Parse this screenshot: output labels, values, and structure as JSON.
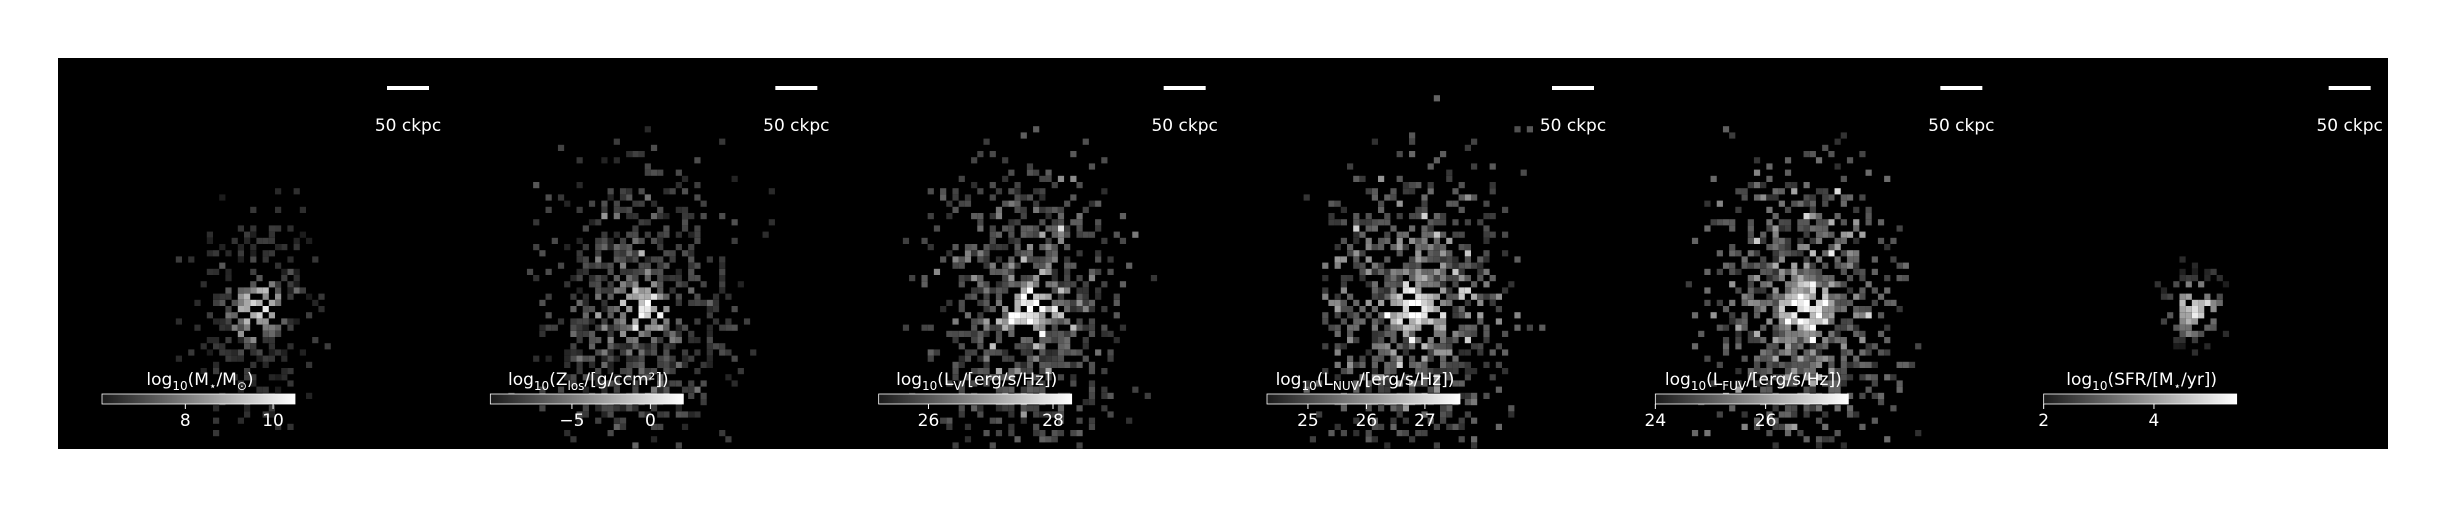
{
  "chart_data": [
    {
      "type": "colorbar",
      "scale_bar": "50 ckpc",
      "label": [
        "log",
        "10",
        "(M",
        "⋆",
        "/M",
        "⊙",
        ")"
      ],
      "clim": [
        6.1,
        10.5
      ],
      "ticks": [
        8,
        10
      ]
    },
    {
      "type": "colorbar",
      "scale_bar": "50 ckpc",
      "label": [
        "log",
        "10",
        "(Z",
        "los",
        "/[g/ccm²])"
      ],
      "clim": [
        -10.2,
        2.1
      ],
      "ticks": [
        {
          "value": -5,
          "label": "−5"
        },
        0
      ]
    },
    {
      "type": "colorbar",
      "scale_bar": "50 ckpc",
      "label": [
        "log",
        "10",
        "(L",
        "V",
        "/[erg/s/Hz])"
      ],
      "clim": [
        25.2,
        28.3
      ],
      "ticks": [
        26,
        28
      ]
    },
    {
      "type": "colorbar",
      "scale_bar": "50 ckpc",
      "label": [
        "log",
        "10",
        "(L",
        "NUV",
        "/[erg/s/Hz])"
      ],
      "clim": [
        24.3,
        27.6
      ],
      "ticks": [
        25,
        26,
        27
      ]
    },
    {
      "type": "colorbar",
      "scale_bar": "50 ckpc",
      "label": [
        "log",
        "10",
        "(L",
        "FUV",
        "/[erg/s/Hz])"
      ],
      "clim": [
        24,
        27.5
      ],
      "ticks": [
        24,
        26
      ]
    },
    {
      "type": "colorbar",
      "scale_bar": "50 ckpc",
      "label": [
        "log",
        "10",
        "(SFR/[M",
        "⋆",
        "/yr])"
      ],
      "clim": [
        2,
        5.5
      ],
      "ticks": [
        2,
        4
      ]
    }
  ]
}
